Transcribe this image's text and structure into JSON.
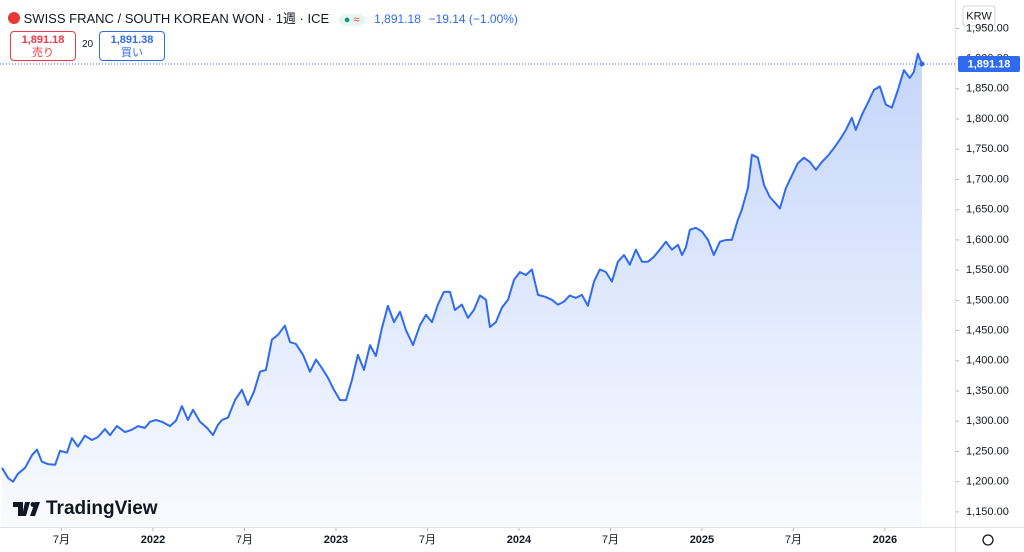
{
  "header": {
    "title": "SWISS FRANC / SOUTH KOREAN WON · 1週 · ICE",
    "price": "1,891.18",
    "change": "−19.14 (−1.00%)",
    "sell_price": "1,891.18",
    "sell_label": "売り",
    "spread": "20",
    "buy_price": "1,891.38",
    "buy_label": "買い",
    "currency": "KRW",
    "logo": "TradingView"
  },
  "chart_data": {
    "type": "line",
    "color": "#2f6bef",
    "grid": false,
    "last_price": {
      "value": 1891.18,
      "label": "1,891.18"
    },
    "xlim": [
      2021.164,
      2026.383
    ],
    "ylim": [
      1125,
      1997
    ],
    "xticks": [
      {
        "value": 2021.5,
        "label": "7月"
      },
      2022,
      {
        "value": 2022.5,
        "label": "7月"
      },
      2023,
      {
        "value": 2023.5,
        "label": "7月"
      },
      2024,
      {
        "value": 2024.5,
        "label": "7月"
      },
      2025,
      {
        "value": 2025.5,
        "label": "7月"
      },
      2026
    ],
    "yticks": [
      {
        "value": 1150,
        "label": "1,150.00"
      },
      {
        "value": 1200,
        "label": "1,200.00"
      },
      {
        "value": 1250,
        "label": "1,250.00"
      },
      {
        "value": 1300,
        "label": "1,300.00"
      },
      {
        "value": 1350,
        "label": "1,350.00"
      },
      {
        "value": 1400,
        "label": "1,400.00"
      },
      {
        "value": 1450,
        "label": "1,450.00"
      },
      {
        "value": 1500,
        "label": "1,500.00"
      },
      {
        "value": 1550,
        "label": "1,550.00"
      },
      {
        "value": 1600,
        "label": "1,600.00"
      },
      {
        "value": 1650,
        "label": "1,650.00"
      },
      {
        "value": 1700,
        "label": "1,700.00"
      },
      {
        "value": 1750,
        "label": "1,750.00"
      },
      {
        "value": 1800,
        "label": "1,800.00"
      },
      {
        "value": 1850,
        "label": "1,850.00"
      },
      {
        "value": 1900,
        "label": "1,900.00"
      },
      {
        "value": 1950,
        "label": "1,950.00"
      }
    ],
    "x": [
      2021.175,
      2021.208,
      2021.235,
      2021.262,
      2021.301,
      2021.339,
      2021.366,
      2021.393,
      2021.426,
      2021.465,
      2021.492,
      2021.53,
      2021.557,
      2021.59,
      2021.628,
      2021.667,
      2021.699,
      2021.738,
      2021.765,
      2021.803,
      2021.847,
      2021.885,
      2021.918,
      2021.956,
      2021.984,
      2022.016,
      2022.049,
      2022.093,
      2022.126,
      2022.158,
      2022.191,
      2022.219,
      2022.257,
      2022.295,
      2022.328,
      2022.355,
      2022.377,
      2022.41,
      2022.448,
      2022.486,
      2022.519,
      2022.552,
      2022.585,
      2022.617,
      2022.65,
      2022.683,
      2022.721,
      2022.749,
      2022.781,
      2022.82,
      2022.858,
      2022.891,
      2022.923,
      2022.956,
      2022.989,
      2023.022,
      2023.055,
      2023.087,
      2023.12,
      2023.153,
      2023.186,
      2023.218,
      2023.251,
      2023.284,
      2023.317,
      2023.35,
      2023.382,
      2023.421,
      2023.459,
      2023.492,
      2023.525,
      2023.557,
      2023.59,
      2023.623,
      2023.65,
      2023.688,
      2023.721,
      2023.754,
      2023.787,
      2023.82,
      2023.841,
      2023.874,
      2023.907,
      2023.94,
      2023.973,
      2024.005,
      2024.038,
      2024.071,
      2024.104,
      2024.142,
      2024.18,
      2024.213,
      2024.246,
      2024.278,
      2024.311,
      2024.344,
      2024.377,
      2024.41,
      2024.442,
      2024.475,
      2024.508,
      2024.541,
      2024.574,
      2024.606,
      2024.639,
      2024.672,
      2024.705,
      2024.737,
      2024.77,
      2024.803,
      2024.836,
      2024.869,
      2024.891,
      2024.912,
      2024.934,
      2024.967,
      2025.0,
      2025.033,
      2025.065,
      2025.098,
      2025.131,
      2025.164,
      2025.196,
      2025.218,
      2025.251,
      2025.273,
      2025.306,
      2025.339,
      2025.371,
      2025.404,
      2025.426,
      2025.459,
      2025.492,
      2025.524,
      2025.557,
      2025.59,
      2025.623,
      2025.655,
      2025.688,
      2025.721,
      2025.754,
      2025.787,
      2025.819,
      2025.841,
      2025.874,
      2025.907,
      2025.94,
      2025.972,
      2026.005,
      2026.038,
      2026.071,
      2026.104,
      2026.136,
      2026.158,
      2026.18,
      2026.202
    ],
    "values": [
      1223,
      1206,
      1200,
      1213,
      1223,
      1244,
      1253,
      1233,
      1229,
      1228,
      1251,
      1248,
      1272,
      1258,
      1276,
      1269,
      1274,
      1287,
      1277,
      1292,
      1282,
      1286,
      1292,
      1289,
      1299,
      1302,
      1299,
      1292,
      1301,
      1325,
      1302,
      1319,
      1299,
      1289,
      1277,
      1294,
      1302,
      1306,
      1335,
      1352,
      1327,
      1349,
      1382,
      1385,
      1435,
      1443,
      1458,
      1431,
      1428,
      1410,
      1382,
      1402,
      1388,
      1372,
      1352,
      1335,
      1335,
      1368,
      1410,
      1385,
      1426,
      1408,
      1454,
      1491,
      1464,
      1481,
      1451,
      1426,
      1459,
      1476,
      1464,
      1493,
      1514,
      1514,
      1484,
      1493,
      1471,
      1484,
      1508,
      1501,
      1456,
      1464,
      1488,
      1501,
      1534,
      1547,
      1542,
      1551,
      1509,
      1506,
      1501,
      1493,
      1498,
      1508,
      1504,
      1509,
      1491,
      1531,
      1551,
      1547,
      1531,
      1564,
      1575,
      1559,
      1584,
      1564,
      1564,
      1572,
      1584,
      1597,
      1584,
      1592,
      1575,
      1587,
      1617,
      1620,
      1614,
      1600,
      1575,
      1597,
      1600,
      1600,
      1633,
      1650,
      1686,
      1741,
      1736,
      1691,
      1671,
      1660,
      1652,
      1686,
      1707,
      1727,
      1736,
      1729,
      1716,
      1729,
      1739,
      1752,
      1766,
      1782,
      1802,
      1782,
      1807,
      1827,
      1848,
      1854,
      1824,
      1819,
      1848,
      1881,
      1868,
      1878,
      1908,
      1891.18
    ]
  }
}
